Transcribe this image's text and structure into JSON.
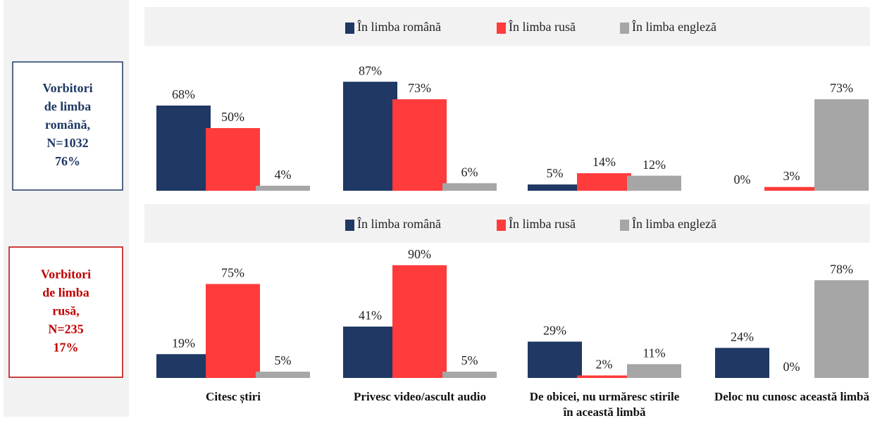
{
  "chart_data": [
    {
      "type": "bar",
      "panel_label": [
        "Vorbitori",
        "de limba",
        "română,",
        "N=1032",
        "76%"
      ],
      "panel_color": "#1f3864",
      "ylim": [
        0,
        100
      ],
      "series": [
        {
          "name": "În limba română",
          "color": "#1f3864",
          "values": [
            68,
            87,
            5,
            0
          ],
          "value_labels": [
            "68%",
            "87%",
            "5%",
            "0%"
          ]
        },
        {
          "name": "În limba rusă",
          "color": "#ff3b3b",
          "values": [
            50,
            73,
            14,
            3
          ],
          "value_labels": [
            "50%",
            "73%",
            "14%",
            "3%"
          ]
        },
        {
          "name": "În limba engleză",
          "color": "#a6a6a6",
          "values": [
            4,
            6,
            12,
            73
          ],
          "value_labels": [
            "4%",
            "6%",
            "12%",
            "73%"
          ]
        }
      ]
    },
    {
      "type": "bar",
      "panel_label": [
        "Vorbitori",
        "de limba",
        "rusă,",
        "N=235",
        "17%"
      ],
      "panel_color": "#c00000",
      "ylim": [
        0,
        100
      ],
      "categories": [
        "Citesc știri",
        "Privesc video/ascult audio",
        "De obicei, nu urmăresc stirile în această limbă",
        "Deloc nu cunosc această limbă"
      ],
      "series": [
        {
          "name": "În limba română",
          "color": "#1f3864",
          "values": [
            19,
            41,
            29,
            24
          ],
          "value_labels": [
            "19%",
            "41%",
            "29%",
            "24%"
          ]
        },
        {
          "name": "În limba rusă",
          "color": "#ff3b3b",
          "values": [
            75,
            90,
            2,
            0
          ],
          "value_labels": [
            "75%",
            "90%",
            "2%",
            "0%"
          ]
        },
        {
          "name": "În limba engleză",
          "color": "#a6a6a6",
          "values": [
            5,
            5,
            11,
            78
          ],
          "value_labels": [
            "5%",
            "5%",
            "11%",
            "78%"
          ]
        }
      ]
    }
  ]
}
